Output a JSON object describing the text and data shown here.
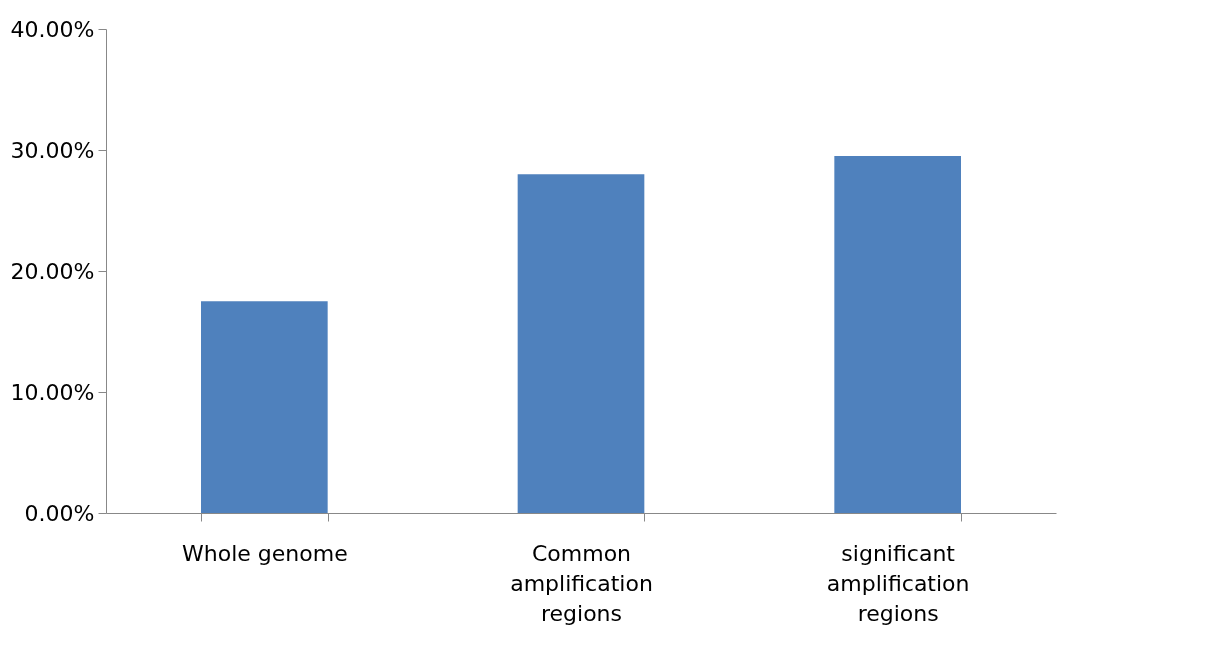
{
  "chart_data": {
    "type": "bar",
    "categories": [
      "Whole genome",
      "Common amplification regions",
      "significant amplification regions"
    ],
    "values": [
      17.5,
      28,
      29.5
    ],
    "color": "#4f81bd",
    "ylim": [
      0,
      40
    ],
    "yticks": [
      {
        "value": 0,
        "label": "0.00%"
      },
      {
        "value": 10,
        "label": "10.00%"
      },
      {
        "value": 20,
        "label": "20.00%"
      },
      {
        "value": 30,
        "label": "30.00%"
      },
      {
        "value": 40,
        "label": "40.00%"
      }
    ],
    "grid": false
  }
}
